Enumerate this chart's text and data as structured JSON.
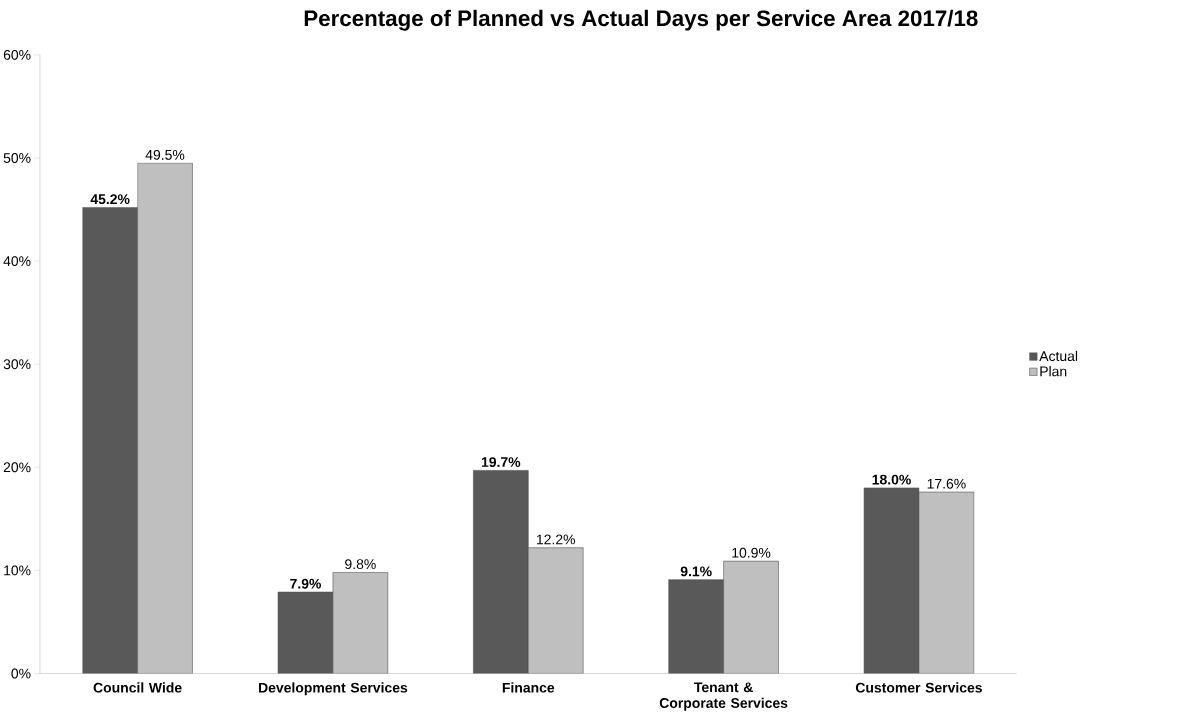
{
  "chart_data": {
    "type": "bar",
    "title": "Percentage of Planned vs Actual Days per Service Area 2017/18",
    "categories": [
      "Council Wide",
      "Development Services",
      "Finance",
      "Tenant & Corporate Services",
      "Customer Services"
    ],
    "series": [
      {
        "name": "Actual",
        "color": "#595959",
        "values": [
          45.2,
          7.9,
          19.7,
          9.1,
          18.0
        ],
        "value_labels": [
          "45.2%",
          "7.9%",
          "19.7%",
          "9.1%",
          "18.0%"
        ]
      },
      {
        "name": "Plan",
        "color": "#bfbfbf",
        "values": [
          49.5,
          9.8,
          12.2,
          10.9,
          17.6
        ],
        "value_labels": [
          "49.5%",
          "9.8%",
          "12.2%",
          "10.9%",
          "17.6%"
        ]
      }
    ],
    "ylim": [
      0,
      60
    ],
    "yticks": [
      {
        "value": 0,
        "label": "0%"
      },
      {
        "value": 10,
        "label": "10%"
      },
      {
        "value": 20,
        "label": "20%"
      },
      {
        "value": 30,
        "label": "30%"
      },
      {
        "value": 40,
        "label": "40%"
      },
      {
        "value": 50,
        "label": "50%"
      },
      {
        "value": 60,
        "label": "60%"
      }
    ],
    "grid": false,
    "legend": "right"
  }
}
